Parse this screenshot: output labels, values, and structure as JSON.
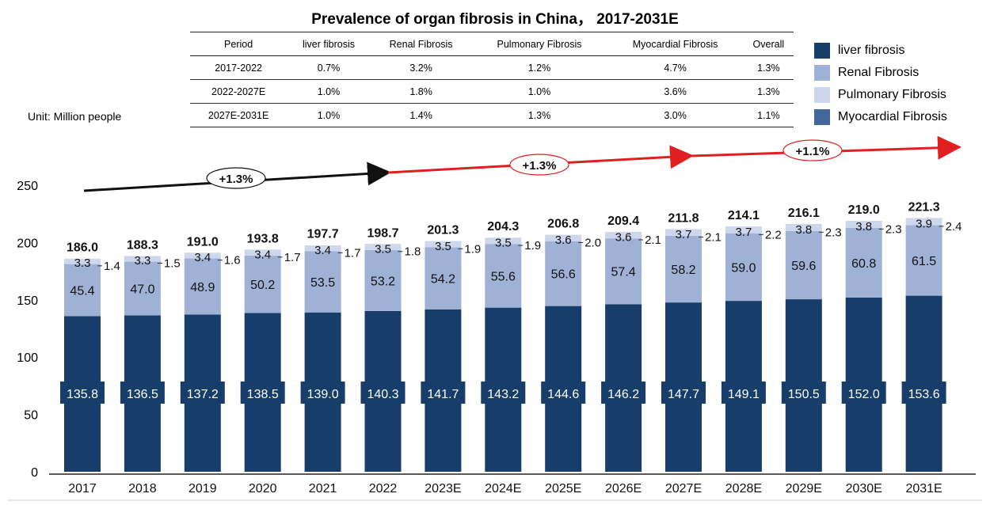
{
  "title": "Prevalence of organ fibrosis in China， 2017-2031E",
  "unit_label": "Unit: Million people",
  "cagr_table": {
    "headers": [
      "Period",
      "liver fibrosis",
      "Renal Fibrosis",
      "Pulmonary Fibrosis",
      "Myocardial Fibrosis",
      "Overall"
    ],
    "rows": [
      [
        "2017-2022",
        "0.7%",
        "3.2%",
        "1.2%",
        "4.7%",
        "1.3%"
      ],
      [
        "2022-2027E",
        "1.0%",
        "1.8%",
        "1.0%",
        "3.6%",
        "1.3%"
      ],
      [
        "2027E-2031E",
        "1.0%",
        "1.4%",
        "1.3%",
        "3.0%",
        "1.1%"
      ]
    ]
  },
  "legend": [
    {
      "label": "liver fibrosis",
      "color": "#173D6A"
    },
    {
      "label": "Renal Fibrosis",
      "color": "#9FB2D6"
    },
    {
      "label": "Pulmonary Fibrosis",
      "color": "#CDD7EB"
    },
    {
      "label": "Myocardial Fibrosis",
      "color": "#43679D"
    }
  ],
  "chart_data": {
    "type": "bar",
    "stacked": true,
    "categories": [
      "2017",
      "2018",
      "2019",
      "2020",
      "2021",
      "2022",
      "2023E",
      "2024E",
      "2025E",
      "2026E",
      "2027E",
      "2028E",
      "2029E",
      "2030E",
      "2031E"
    ],
    "series": [
      {
        "name": "liver fibrosis",
        "color": "#173D6A",
        "values": [
          135.8,
          136.5,
          137.2,
          138.5,
          139.0,
          140.3,
          141.7,
          143.2,
          144.6,
          146.2,
          147.7,
          149.1,
          150.5,
          152.0,
          153.6
        ]
      },
      {
        "name": "Renal Fibrosis",
        "color": "#9FB2D6",
        "values": [
          45.4,
          47.0,
          48.9,
          50.2,
          53.5,
          53.2,
          54.2,
          55.6,
          56.6,
          57.4,
          58.2,
          59.0,
          59.6,
          60.8,
          61.5
        ]
      },
      {
        "name": "Pulmonary Fibrosis",
        "color": "#CDD7EB",
        "values": [
          3.3,
          3.3,
          3.4,
          3.4,
          3.4,
          3.5,
          3.5,
          3.5,
          3.6,
          3.6,
          3.7,
          3.7,
          3.8,
          3.8,
          3.9
        ]
      },
      {
        "name": "Myocardial Fibrosis",
        "color": "#43679D",
        "values": [
          1.4,
          1.5,
          1.6,
          1.7,
          1.7,
          1.8,
          1.9,
          1.9,
          2.0,
          2.1,
          2.1,
          2.2,
          2.3,
          2.3,
          2.4
        ]
      }
    ],
    "totals": [
      186.0,
      188.3,
      191.0,
      193.8,
      197.7,
      198.7,
      201.3,
      204.3,
      206.8,
      209.4,
      211.8,
      214.1,
      216.1,
      219.0,
      221.3
    ],
    "ylim": [
      0,
      250
    ],
    "yticks": [
      0,
      50,
      100,
      150,
      200,
      250
    ],
    "growth_annotations": [
      {
        "label": "+1.3%",
        "period": "2017-2022",
        "color": "#111111"
      },
      {
        "label": "+1.3%",
        "period": "2022-2027E",
        "color": "#E02020"
      },
      {
        "label": "+1.1%",
        "period": "2027E-2031E",
        "color": "#E02020"
      }
    ],
    "xlabel": "",
    "ylabel": ""
  }
}
